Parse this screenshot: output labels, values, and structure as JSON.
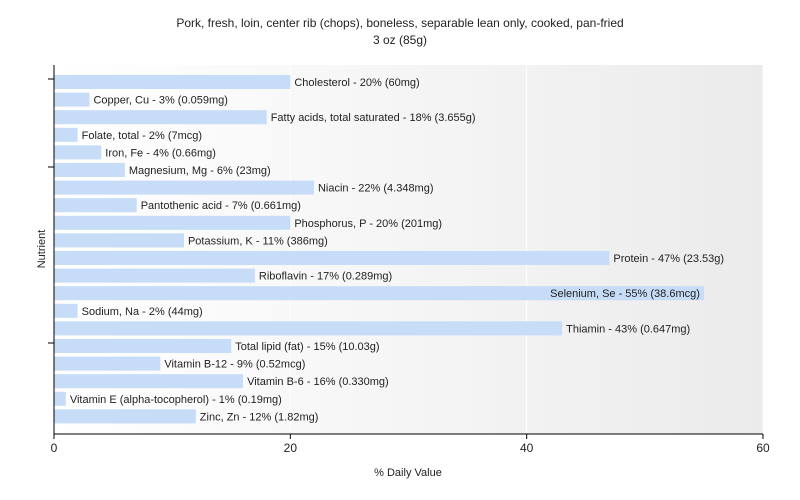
{
  "chart_data": {
    "type": "bar",
    "orientation": "horizontal",
    "title": "Pork, fresh, loin, center rib (chops), boneless, separable lean only, cooked, pan-fried",
    "subtitle": "3 oz (85g)",
    "xlabel": "% Daily Value",
    "ylabel": "Nutrient",
    "xlim": [
      0,
      60
    ],
    "xticks": [
      0,
      20,
      40,
      60
    ],
    "grid": true,
    "bar_color": "#c6dcf7",
    "categories": [
      "Cholesterol",
      "Copper, Cu",
      "Fatty acids, total saturated",
      "Folate, total",
      "Iron, Fe",
      "Magnesium, Mg",
      "Niacin",
      "Pantothenic acid",
      "Phosphorus, P",
      "Potassium, K",
      "Protein",
      "Riboflavin",
      "Selenium, Se",
      "Sodium, Na",
      "Thiamin",
      "Total lipid (fat)",
      "Vitamin B-12",
      "Vitamin B-6",
      "Vitamin E (alpha-tocopherol)",
      "Zinc, Zn"
    ],
    "values": [
      20,
      3,
      18,
      2,
      4,
      6,
      22,
      7,
      20,
      11,
      47,
      17,
      55,
      2,
      43,
      15,
      9,
      16,
      1,
      12
    ],
    "labels": [
      "Cholesterol - 20% (60mg)",
      "Copper, Cu - 3% (0.059mg)",
      "Fatty acids, total saturated - 18% (3.655g)",
      "Folate, total - 2% (7mcg)",
      "Iron, Fe - 4% (0.66mg)",
      "Magnesium, Mg - 6% (23mg)",
      "Niacin - 22% (4.348mg)",
      "Pantothenic acid - 7% (0.661mg)",
      "Phosphorus, P - 20% (201mg)",
      "Potassium, K - 11% (386mg)",
      "Protein - 47% (23.53g)",
      "Riboflavin - 17% (0.289mg)",
      "Selenium, Se - 55% (38.6mcg)",
      "Sodium, Na - 2% (44mg)",
      "Thiamin - 43% (0.647mg)",
      "Total lipid (fat) - 15% (10.03g)",
      "Vitamin B-12 - 9% (0.52mcg)",
      "Vitamin B-6 - 16% (0.330mg)",
      "Vitamin E (alpha-tocopherol) - 1% (0.19mg)",
      "Zinc, Zn - 12% (1.82mg)"
    ]
  }
}
